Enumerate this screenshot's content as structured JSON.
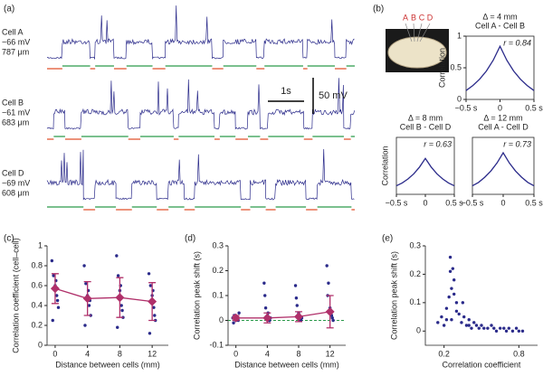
{
  "chart_data": [
    {
      "type": "traces",
      "panel": "(a)",
      "cells": [
        {
          "name": "Cell A",
          "potential": "−66 mV",
          "depth": "787 μm"
        },
        {
          "name": "Cell B",
          "potential": "−61 mV",
          "depth": "683 μm"
        },
        {
          "name": "Cell D",
          "potential": "−69 mV",
          "depth": "608 μm"
        }
      ],
      "time_scale": "1s",
      "voltage_scale": "50 mV"
    },
    {
      "type": "line",
      "panel": "(b)",
      "electrodes": [
        "A",
        "B",
        "C",
        "D"
      ],
      "title": "Δ = 4 mm",
      "subtitle": "Cell A - Cell B",
      "annotation": "r = 0.84",
      "ylabel": "Correlation",
      "color": "#2a2a8a",
      "x": [
        -0.5,
        -0.4,
        -0.3,
        -0.2,
        -0.1,
        0,
        0.1,
        0.2,
        0.3,
        0.4,
        0.5
      ],
      "values": [
        0.14,
        0.22,
        0.32,
        0.45,
        0.62,
        0.84,
        0.62,
        0.45,
        0.32,
        0.22,
        0.14
      ],
      "xlim": [
        -0.5,
        0.5
      ],
      "xticks": [
        {
          "value": -0.5,
          "label": "−0.5 s"
        },
        0,
        {
          "value": 0.5,
          "label": "0.5 s"
        }
      ],
      "ylim": [
        0,
        1
      ],
      "yticks": [
        0,
        0.5,
        1
      ]
    },
    {
      "type": "line",
      "title": "Δ = 8 mm",
      "subtitle": "Cell B - Cell D",
      "annotation": "r = 0.63",
      "ylabel": "Correlation",
      "color": "#2a2a8a",
      "x": [
        -0.5,
        -0.4,
        -0.3,
        -0.2,
        -0.1,
        0,
        0.1,
        0.2,
        0.3,
        0.4,
        0.5
      ],
      "values": [
        0.15,
        0.2,
        0.27,
        0.36,
        0.48,
        0.63,
        0.48,
        0.36,
        0.27,
        0.2,
        0.15
      ],
      "xlim": [
        -0.5,
        0.5
      ],
      "xticks": [
        {
          "value": -0.5,
          "label": "−0.5 s"
        },
        0,
        {
          "value": 0.5,
          "label": "0.5 s"
        }
      ],
      "ylim": [
        0,
        1
      ]
    },
    {
      "type": "line",
      "title": "Δ = 12 mm",
      "subtitle": "Cell A - Cell D",
      "annotation": "r = 0.73",
      "color": "#2a2a8a",
      "x": [
        -0.5,
        -0.4,
        -0.3,
        -0.2,
        -0.1,
        0,
        0.1,
        0.2,
        0.3,
        0.4,
        0.5
      ],
      "values": [
        0.15,
        0.21,
        0.3,
        0.41,
        0.55,
        0.73,
        0.55,
        0.41,
        0.3,
        0.21,
        0.15
      ],
      "xlim": [
        -0.5,
        0.5
      ],
      "xticks": [
        {
          "value": -0.5,
          "label": "−0.5 s"
        },
        0,
        {
          "value": 0.5,
          "label": "0.5 s"
        }
      ],
      "ylim": [
        0,
        1
      ]
    },
    {
      "type": "scatter",
      "panel": "(c)",
      "xlabel": "Distance between cells (mm)",
      "ylabel": "Correlation coefficient (cell–cell)",
      "color": "#2a2a8a",
      "x": [
        -0.4,
        -0.2,
        0,
        0.2,
        0.4,
        -0.3,
        0.1,
        0.3,
        3.6,
        3.8,
        4,
        4.2,
        4.4,
        3.7,
        4.1,
        4.3,
        7.6,
        7.8,
        8,
        8.2,
        8.4,
        7.7,
        8.1,
        8.3,
        11.6,
        11.8,
        12,
        12.2,
        12.4,
        11.7,
        12.1,
        12.3
      ],
      "values": [
        0.85,
        0.7,
        0.6,
        0.5,
        0.38,
        0.25,
        0.65,
        0.45,
        0.8,
        0.62,
        0.5,
        0.4,
        0.3,
        0.2,
        0.55,
        0.45,
        0.9,
        0.7,
        0.55,
        0.4,
        0.28,
        0.18,
        0.6,
        0.35,
        0.72,
        0.6,
        0.5,
        0.38,
        0.25,
        0.12,
        0.55,
        0.3
      ],
      "means": {
        "color": "#b0306a",
        "x": [
          0,
          4,
          8,
          12
        ],
        "values": [
          0.57,
          0.47,
          0.48,
          0.44
        ],
        "errors": [
          0.15,
          0.17,
          0.2,
          0.19
        ]
      },
      "xlim": [
        -1,
        14
      ],
      "xticks": [
        0,
        4,
        8,
        12
      ],
      "ylim": [
        0,
        1
      ],
      "yticks": [
        0,
        0.2,
        0.4,
        0.6,
        0.8,
        1
      ]
    },
    {
      "type": "scatter",
      "panel": "(d)",
      "xlabel": "Distance between cells (mm)",
      "ylabel": "Correlation peak shift (s)",
      "color": "#2a2a8a",
      "x": [
        -0.4,
        -0.2,
        0,
        0.2,
        0.4,
        -0.3,
        0.1,
        0.3,
        3.6,
        3.8,
        4,
        4.2,
        4.4,
        3.7,
        4.1,
        4.3,
        7.6,
        7.8,
        8,
        8.2,
        8.4,
        7.7,
        8.1,
        8.3,
        11.6,
        11.8,
        12,
        12.2,
        12.4,
        11.7,
        12.1,
        12.3
      ],
      "values": [
        0.01,
        0.02,
        0,
        0.005,
        0.03,
        -0.01,
        0.01,
        0,
        0.15,
        0.05,
        0.02,
        0,
        0.01,
        0.1,
        0.03,
        0,
        0.14,
        0.06,
        0.03,
        0,
        0.01,
        0.09,
        0.02,
        0,
        0.22,
        0.15,
        0.05,
        0.02,
        0,
        0.1,
        0.04,
        0.01
      ],
      "means": {
        "color": "#b0306a",
        "x": [
          0,
          4,
          8,
          12
        ],
        "values": [
          0.01,
          0.01,
          0.015,
          0.035
        ],
        "errors": [
          0.01,
          0.02,
          0.02,
          0.065
        ]
      },
      "hline": 0,
      "hline_color": "#2a9a4a",
      "xlim": [
        -1,
        14
      ],
      "xticks": [
        0,
        4,
        8,
        12
      ],
      "ylim": [
        -0.1,
        0.3
      ],
      "yticks": [
        -0.1,
        0,
        0.1,
        0.2,
        0.3
      ]
    },
    {
      "type": "scatter",
      "panel": "(e)",
      "xlabel": "Correlation coefficient",
      "ylabel": "Correlation peak shift (s)",
      "color": "#2a2a8a",
      "x": [
        0.15,
        0.18,
        0.2,
        0.22,
        0.24,
        0.25,
        0.26,
        0.28,
        0.3,
        0.32,
        0.34,
        0.36,
        0.38,
        0.4,
        0.42,
        0.44,
        0.46,
        0.48,
        0.5,
        0.52,
        0.55,
        0.58,
        0.6,
        0.62,
        0.65,
        0.68,
        0.7,
        0.72,
        0.75,
        0.78,
        0.8,
        0.83,
        0.25,
        0.26,
        0.27,
        0.3,
        0.22,
        0.35,
        0.4,
        0.28
      ],
      "values": [
        0.03,
        0.05,
        0.02,
        0.08,
        0.12,
        0.26,
        0.04,
        0.18,
        0.1,
        0.06,
        0.03,
        0.05,
        0.02,
        0.04,
        0.01,
        0.03,
        0.02,
        0.01,
        0.02,
        0.01,
        0.01,
        0.02,
        0.01,
        0,
        0.01,
        0.01,
        0,
        0.01,
        0,
        0.01,
        0,
        0,
        0.21,
        0.15,
        0.22,
        0.07,
        0.04,
        0.1,
        0.02,
        0.13
      ],
      "xlim": [
        0.05,
        0.95
      ],
      "xticks": [
        0.2,
        0.8
      ],
      "ylim": [
        -0.05,
        0.3
      ],
      "yticks": [
        0,
        0.1,
        0.2,
        0.3
      ]
    }
  ]
}
